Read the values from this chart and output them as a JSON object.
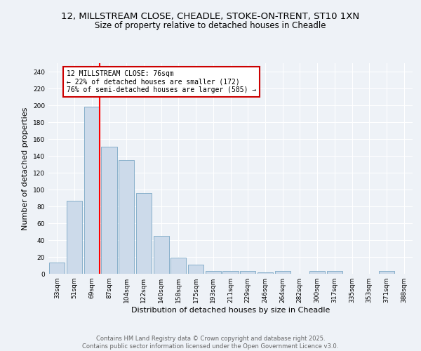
{
  "title": "12, MILLSTREAM CLOSE, CHEADLE, STOKE-ON-TRENT, ST10 1XN",
  "subtitle": "Size of property relative to detached houses in Cheadle",
  "xlabel": "Distribution of detached houses by size in Cheadle",
  "ylabel": "Number of detached properties",
  "categories": [
    "33sqm",
    "51sqm",
    "69sqm",
    "87sqm",
    "104sqm",
    "122sqm",
    "140sqm",
    "158sqm",
    "175sqm",
    "193sqm",
    "211sqm",
    "229sqm",
    "246sqm",
    "264sqm",
    "282sqm",
    "300sqm",
    "317sqm",
    "335sqm",
    "353sqm",
    "371sqm",
    "388sqm"
  ],
  "values": [
    13,
    87,
    198,
    151,
    135,
    96,
    45,
    19,
    11,
    3,
    3,
    3,
    2,
    3,
    0,
    3,
    3,
    0,
    0,
    3,
    0
  ],
  "bar_color": "#ccdaea",
  "bar_edgecolor": "#6699bb",
  "red_line_index": 2,
  "annotation_text": "12 MILLSTREAM CLOSE: 76sqm\n← 22% of detached houses are smaller (172)\n76% of semi-detached houses are larger (585) →",
  "annotation_box_facecolor": "#ffffff",
  "annotation_box_edgecolor": "#cc0000",
  "ylim": [
    0,
    250
  ],
  "yticks": [
    0,
    20,
    40,
    60,
    80,
    100,
    120,
    140,
    160,
    180,
    200,
    220,
    240
  ],
  "footer_text": "Contains HM Land Registry data © Crown copyright and database right 2025.\nContains public sector information licensed under the Open Government Licence v3.0.",
  "background_color": "#eef2f7",
  "grid_color": "#ffffff",
  "title_fontsize": 9.5,
  "subtitle_fontsize": 8.5,
  "ylabel_fontsize": 8,
  "xlabel_fontsize": 8,
  "tick_fontsize": 6.5,
  "annotation_fontsize": 7,
  "footer_fontsize": 6
}
